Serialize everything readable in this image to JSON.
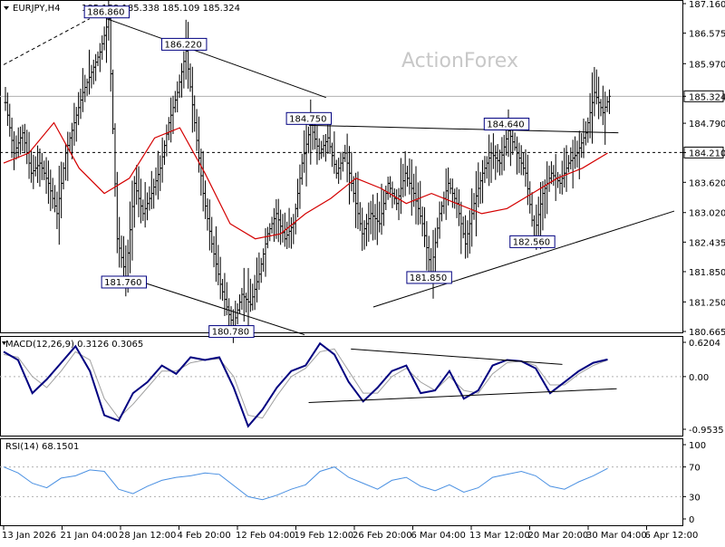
{
  "colors": {
    "candle": "#000000",
    "ma": "#d40000",
    "macd": "#000080",
    "signal": "#a0a0a0",
    "rsi": "#4a90e2",
    "trendline": "#000000",
    "grid": "#b0b0b0",
    "label_bg": "#ffffff",
    "label_border": "#000080",
    "label_text": "#000080"
  },
  "chart_data": [
    {
      "type": "candlestick",
      "title": "EURJPY,H4",
      "ohlc_header": "185.159 185.338 185.109 185.324",
      "watermark": "ActionForex",
      "ylim": [
        180.665,
        187.16
      ],
      "y_ticks": [
        "187.160",
        "186.575",
        "185.970",
        "185.324",
        "184.790",
        "184.210",
        "183.620",
        "183.020",
        "182.435",
        "181.850",
        "181.250",
        "180.665"
      ],
      "current_price": "185.324",
      "level_line": "184.210",
      "x_ticks": [
        "13 Jan 2026",
        "21 Jan 04:00",
        "28 Jan 12:00",
        "4 Feb 20:00",
        "12 Feb 04:00",
        "19 Feb 12:00",
        "26 Feb 20:00",
        "6 Mar 04:00",
        "13 Mar 12:00",
        "20 Mar 20:00",
        "30 Mar 04:00",
        "6 Apr 12:00"
      ],
      "price_path": [
        [
          0,
          185.2
        ],
        [
          4,
          184.2
        ],
        [
          8,
          184.6
        ],
        [
          12,
          183.8
        ],
        [
          16,
          184.0
        ],
        [
          20,
          183.6
        ],
        [
          24,
          183.0
        ],
        [
          28,
          184.2
        ],
        [
          32,
          184.8
        ],
        [
          36,
          185.4
        ],
        [
          40,
          185.8
        ],
        [
          44,
          186.2
        ],
        [
          48,
          186.86
        ],
        [
          52,
          182.5
        ],
        [
          56,
          181.76
        ],
        [
          60,
          183.6
        ],
        [
          64,
          183.0
        ],
        [
          68,
          183.4
        ],
        [
          72,
          183.9
        ],
        [
          76,
          184.8
        ],
        [
          80,
          185.4
        ],
        [
          84,
          186.22
        ],
        [
          88,
          184.8
        ],
        [
          92,
          183.4
        ],
        [
          96,
          182.4
        ],
        [
          100,
          181.6
        ],
        [
          104,
          181.0
        ],
        [
          106,
          180.78
        ],
        [
          110,
          181.4
        ],
        [
          114,
          181.2
        ],
        [
          118,
          181.8
        ],
        [
          122,
          182.6
        ],
        [
          126,
          183.0
        ],
        [
          130,
          182.5
        ],
        [
          134,
          182.8
        ],
        [
          138,
          184.0
        ],
        [
          142,
          184.75
        ],
        [
          146,
          184.2
        ],
        [
          150,
          184.5
        ],
        [
          154,
          183.8
        ],
        [
          158,
          184.2
        ],
        [
          162,
          183.4
        ],
        [
          166,
          182.6
        ],
        [
          170,
          183.0
        ],
        [
          174,
          182.8
        ],
        [
          178,
          183.6
        ],
        [
          182,
          183.2
        ],
        [
          186,
          183.8
        ],
        [
          190,
          183.4
        ],
        [
          194,
          182.8
        ],
        [
          198,
          181.85
        ],
        [
          202,
          183.0
        ],
        [
          206,
          183.6
        ],
        [
          210,
          183.2
        ],
        [
          214,
          182.4
        ],
        [
          218,
          183.2
        ],
        [
          222,
          183.8
        ],
        [
          226,
          184.2
        ],
        [
          230,
          184.0
        ],
        [
          234,
          184.64
        ],
        [
          238,
          184.2
        ],
        [
          242,
          183.8
        ],
        [
          246,
          182.56
        ],
        [
          250,
          183.4
        ],
        [
          254,
          183.8
        ],
        [
          258,
          183.6
        ],
        [
          262,
          184.0
        ],
        [
          266,
          184.2
        ],
        [
          270,
          184.6
        ],
        [
          274,
          185.4
        ],
        [
          278,
          185.0
        ],
        [
          281,
          185.324
        ]
      ],
      "ma_values": [
        184.0,
        184.2,
        184.8,
        183.9,
        183.4,
        183.7,
        184.5,
        184.7,
        183.8,
        182.8,
        182.5,
        182.6,
        183.0,
        183.3,
        183.7,
        183.5,
        183.2,
        183.4,
        183.2,
        183.0,
        183.1,
        183.4,
        183.7,
        183.9,
        184.2
      ],
      "annotations": [
        {
          "label": "186.860",
          "x": 48,
          "y": 186.86
        },
        {
          "label": "186.220",
          "x": 84,
          "y": 186.22
        },
        {
          "label": "184.750",
          "x": 142,
          "y": 184.75
        },
        {
          "label": "184.640",
          "x": 234,
          "y": 184.64
        },
        {
          "label": "181.760",
          "x": 56,
          "y": 181.76
        },
        {
          "label": "180.780",
          "x": 106,
          "y": 180.78
        },
        {
          "label": "181.850",
          "x": 198,
          "y": 181.85
        },
        {
          "label": "182.560",
          "x": 246,
          "y": 182.56
        }
      ],
      "trendlines": [
        {
          "from": [
            48,
            186.86
          ],
          "to": [
            150,
            185.3
          ]
        },
        {
          "from": [
            56,
            181.76
          ],
          "to": [
            140,
            180.6
          ]
        },
        {
          "from": [
            142,
            184.75
          ],
          "to": [
            286,
            184.6
          ]
        },
        {
          "from": [
            172,
            181.15
          ],
          "to": [
            312,
            183.05
          ]
        },
        {
          "from": [
            0,
            185.95
          ],
          "to": [
            40,
            186.86
          ]
        }
      ]
    },
    {
      "type": "line",
      "title": "MACD(12,26,9) 0.3126 0.3065",
      "ylim": [
        -0.9535,
        0.6204
      ],
      "y_ticks": [
        "0.6204",
        "0.00",
        "-0.9535"
      ],
      "series": [
        {
          "name": "MACD",
          "values": [
            0.45,
            0.3,
            -0.3,
            -0.05,
            0.25,
            0.55,
            0.1,
            -0.7,
            -0.8,
            -0.3,
            -0.1,
            0.2,
            0.05,
            0.35,
            0.3,
            0.35,
            -0.2,
            -0.9,
            -0.6,
            -0.2,
            0.1,
            0.2,
            0.6,
            0.4,
            -0.1,
            -0.45,
            -0.2,
            0.1,
            0.2,
            -0.3,
            -0.25,
            0.1,
            -0.4,
            -0.25,
            0.2,
            0.3,
            0.28,
            0.15,
            -0.3,
            -0.1,
            0.1,
            0.25,
            0.31
          ]
        },
        {
          "name": "Signal",
          "values": [
            0.4,
            0.35,
            0.0,
            -0.2,
            0.1,
            0.45,
            0.3,
            -0.4,
            -0.75,
            -0.5,
            -0.2,
            0.1,
            0.1,
            0.25,
            0.3,
            0.32,
            0.0,
            -0.7,
            -0.75,
            -0.35,
            0.0,
            0.15,
            0.45,
            0.5,
            0.1,
            -0.3,
            -0.3,
            0.0,
            0.15,
            -0.1,
            -0.25,
            0.0,
            -0.25,
            -0.3,
            0.05,
            0.25,
            0.28,
            0.2,
            -0.15,
            -0.15,
            0.05,
            0.2,
            0.3
          ]
        }
      ],
      "trendlines": [
        {
          "from": [
            0.5,
            0.5
          ],
          "to": [
            0.85,
            0.22
          ]
        },
        {
          "from": [
            0.43,
            -0.47
          ],
          "to": [
            0.94,
            -0.22
          ]
        }
      ]
    },
    {
      "type": "line",
      "title": "RSI(14) 68.1501",
      "ylim": [
        0,
        100
      ],
      "y_ticks": [
        "100",
        "70",
        "30",
        "0"
      ],
      "series": [
        {
          "name": "RSI",
          "values": [
            70,
            62,
            48,
            42,
            55,
            58,
            66,
            64,
            40,
            34,
            44,
            52,
            56,
            58,
            62,
            60,
            45,
            30,
            26,
            32,
            40,
            46,
            64,
            70,
            56,
            48,
            40,
            52,
            56,
            44,
            38,
            46,
            36,
            42,
            56,
            60,
            64,
            58,
            44,
            40,
            50,
            58,
            68
          ]
        }
      ]
    }
  ]
}
